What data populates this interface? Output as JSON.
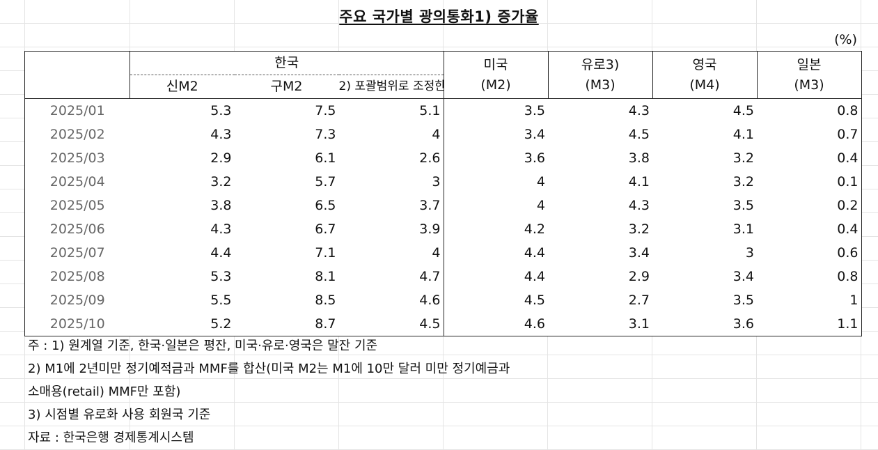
{
  "title": "주요 국가별 광의통화1) 증가율",
  "unit": "(%)",
  "header": {
    "korea": "한국",
    "korea_sub": [
      "신M2",
      "구M2",
      "2) 포괄범위로 조정한"
    ],
    "us": [
      "미국",
      "(M2)"
    ],
    "euro": [
      "유로3)",
      "(M3)"
    ],
    "uk": [
      "영국",
      "(M4)"
    ],
    "japan": [
      "일본",
      "(M3)"
    ]
  },
  "rows": [
    [
      "2025/01",
      "5.3",
      "7.5",
      "5.1",
      "3.5",
      "4.3",
      "4.5",
      "0.8"
    ],
    [
      "2025/02",
      "4.3",
      "7.3",
      "4",
      "3.4",
      "4.5",
      "4.1",
      "0.7"
    ],
    [
      "2025/03",
      "2.9",
      "6.1",
      "2.6",
      "3.6",
      "3.8",
      "3.2",
      "0.4"
    ],
    [
      "2025/04",
      "3.2",
      "5.7",
      "3",
      "4",
      "4.1",
      "3.2",
      "0.1"
    ],
    [
      "2025/05",
      "3.8",
      "6.5",
      "3.7",
      "4",
      "4.3",
      "3.5",
      "0.2"
    ],
    [
      "2025/06",
      "4.3",
      "6.7",
      "3.9",
      "4.2",
      "3.2",
      "3.1",
      "0.4"
    ],
    [
      "2025/07",
      "4.4",
      "7.1",
      "4",
      "4.4",
      "3.4",
      "3",
      "0.6"
    ],
    [
      "2025/08",
      "5.3",
      "8.1",
      "4.7",
      "4.4",
      "2.9",
      "3.4",
      "0.8"
    ],
    [
      "2025/09",
      "5.5",
      "8.5",
      "4.6",
      "4.5",
      "2.7",
      "3.5",
      "1"
    ],
    [
      "2025/10",
      "5.2",
      "8.7",
      "4.5",
      "4.6",
      "3.1",
      "3.6",
      "1.1"
    ]
  ],
  "notes": [
    "주 : 1) 원계열 기준, 한국·일본은 평잔, 미국·유로·영국은 말잔 기준",
    "2) M1에 2년미만 정기예적금과 MMF를 합산(미국 M2는 M1에 10만 달러 미만 정기예금과",
    "소매용(retail) MMF만 포함)",
    "3) 시점별 유로화 사용 회원국 기준",
    "자료 : 한국은행 경제통계시스템"
  ]
}
